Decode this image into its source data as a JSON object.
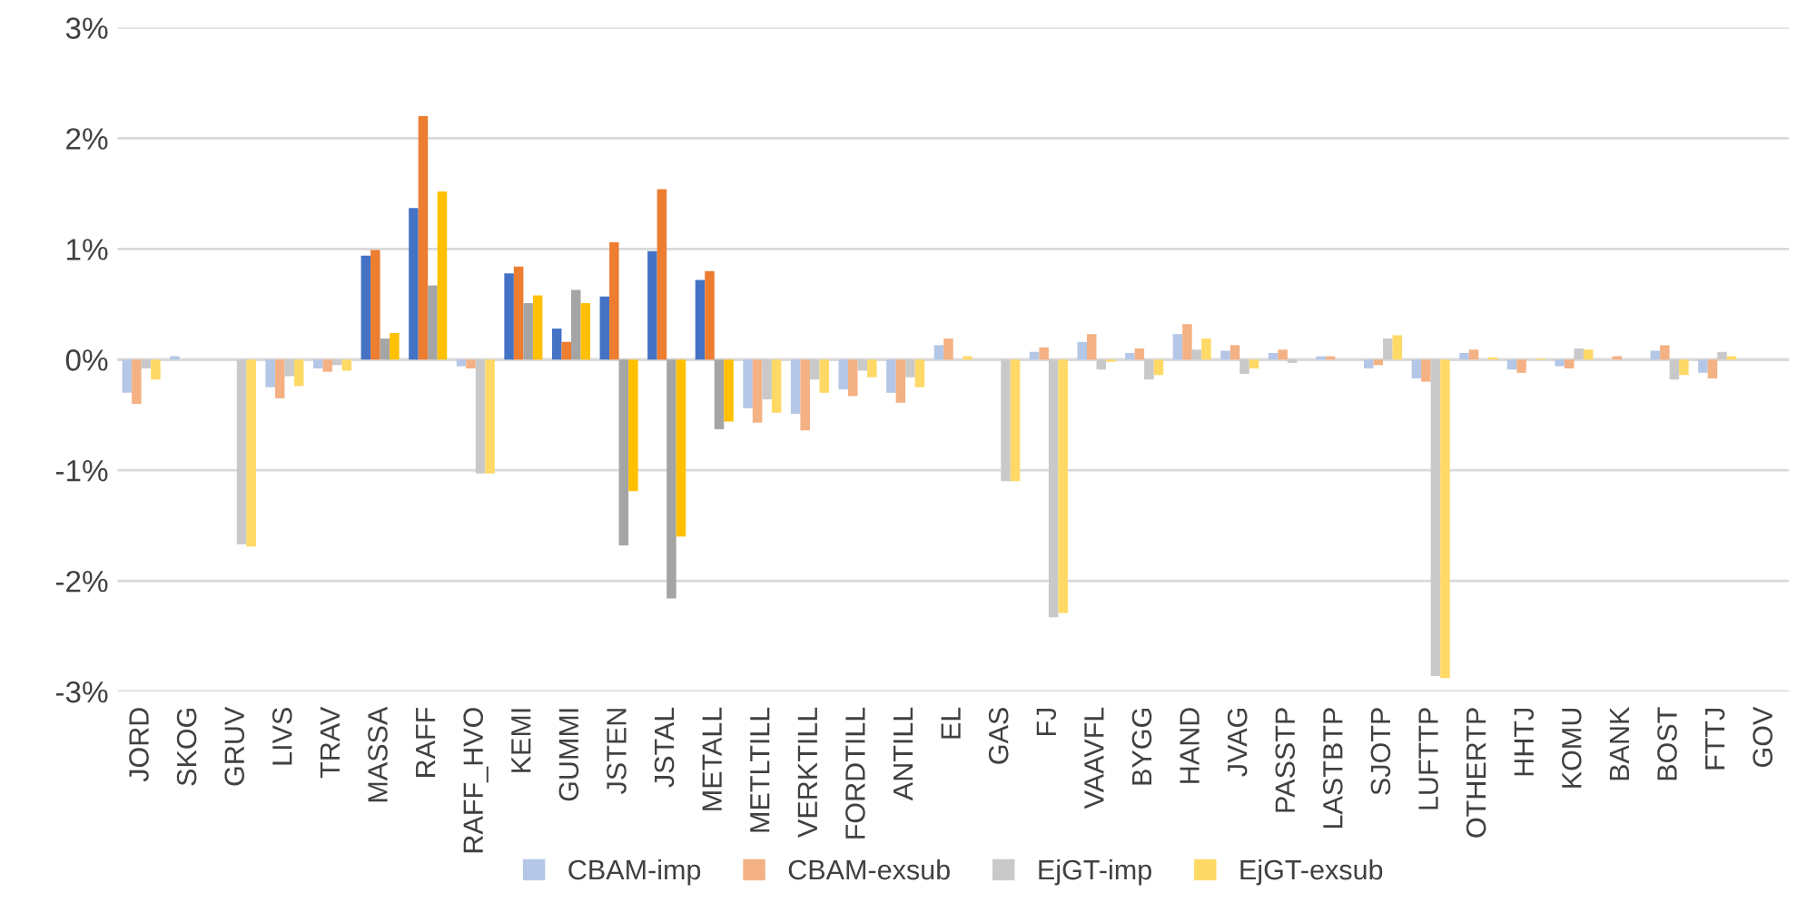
{
  "chart_data": {
    "type": "bar",
    "categories": [
      "JORD",
      "SKOG",
      "GRUV",
      "LIVS",
      "TRAV",
      "MASSA",
      "RAFF",
      "RAFF_HVO",
      "KEMI",
      "GUMMI",
      "JSTEN",
      "JSTAL",
      "METALL",
      "METLTILL",
      "VERKTILL",
      "FORDTILL",
      "ANTILL",
      "EL",
      "GAS",
      "FJ",
      "VAAVFL",
      "BYGG",
      "HAND",
      "JVAG",
      "PASSTP",
      "LASTBTP",
      "SJOTP",
      "LUFTTP",
      "OTHERTP",
      "HHTJ",
      "KOMU",
      "BANK",
      "BOST",
      "FTTJ",
      "GOV"
    ],
    "series": [
      {
        "name": "CBAM-imp",
        "color": "#b4c7e7",
        "colors": [
          "#b4c7e7",
          "#b4c7e7",
          "#b4c7e7",
          "#b4c7e7",
          "#b4c7e7",
          "#4472c4",
          "#4472c4",
          "#b4c7e7",
          "#4472c4",
          "#4472c4",
          "#4472c4",
          "#4472c4",
          "#4472c4",
          "#b4c7e7",
          "#b4c7e7",
          "#b4c7e7",
          "#b4c7e7",
          "#b4c7e7",
          "#b4c7e7",
          "#b4c7e7",
          "#b4c7e7",
          "#b4c7e7",
          "#b4c7e7",
          "#b4c7e7",
          "#b4c7e7",
          "#b4c7e7",
          "#b4c7e7",
          "#b4c7e7",
          "#b4c7e7",
          "#b4c7e7",
          "#b4c7e7",
          "#b4c7e7",
          "#b4c7e7",
          "#b4c7e7",
          "#b4c7e7"
        ],
        "values": [
          -0.3,
          0.03,
          0,
          -0.25,
          -0.08,
          0.94,
          1.37,
          -0.06,
          0.78,
          0.28,
          0.57,
          0.98,
          0.72,
          -0.44,
          -0.49,
          -0.27,
          -0.3,
          0.13,
          0,
          0.07,
          0.16,
          0.06,
          0.23,
          0.08,
          0.06,
          0.03,
          -0.08,
          -0.17,
          0.06,
          -0.09,
          -0.06,
          null,
          0.08,
          -0.12,
          0
        ]
      },
      {
        "name": "CBAM-exsub",
        "color": "#f4b183",
        "colors": [
          "#f4b183",
          "#f4b183",
          "#f4b183",
          "#f4b183",
          "#f4b183",
          "#ed7d31",
          "#ed7d31",
          "#f4b183",
          "#ed7d31",
          "#ed7d31",
          "#ed7d31",
          "#ed7d31",
          "#ed7d31",
          "#f4b183",
          "#f4b183",
          "#f4b183",
          "#f4b183",
          "#f4b183",
          "#f4b183",
          "#f4b183",
          "#f4b183",
          "#f4b183",
          "#f4b183",
          "#f4b183",
          "#f4b183",
          "#f4b183",
          "#f4b183",
          "#f4b183",
          "#f4b183",
          "#f4b183",
          "#f4b183",
          "#f4b183",
          "#f4b183",
          "#f4b183",
          "#f4b183"
        ],
        "values": [
          -0.4,
          0,
          0,
          -0.35,
          -0.11,
          0.99,
          2.2,
          -0.08,
          0.84,
          0.16,
          1.06,
          1.54,
          0.8,
          -0.57,
          -0.64,
          -0.33,
          -0.39,
          0.19,
          0,
          0.11,
          0.23,
          0.1,
          0.32,
          0.13,
          0.09,
          0.03,
          -0.05,
          -0.2,
          0.09,
          -0.12,
          -0.08,
          0.03,
          0.13,
          -0.17,
          0
        ]
      },
      {
        "name": "EjGT-imp",
        "color": "#c9c9c9",
        "colors": [
          "#c9c9c9",
          "#c9c9c9",
          "#c9c9c9",
          "#c9c9c9",
          "#c9c9c9",
          "#a5a5a5",
          "#a5a5a5",
          "#c9c9c9",
          "#a5a5a5",
          "#a5a5a5",
          "#a5a5a5",
          "#a5a5a5",
          "#a5a5a5",
          "#c9c9c9",
          "#c9c9c9",
          "#c9c9c9",
          "#c9c9c9",
          "#c9c9c9",
          "#c9c9c9",
          "#c9c9c9",
          "#c9c9c9",
          "#c9c9c9",
          "#c9c9c9",
          "#c9c9c9",
          "#c9c9c9",
          "#c9c9c9",
          "#c9c9c9",
          "#c9c9c9",
          "#c9c9c9",
          "#c9c9c9",
          "#c9c9c9",
          "#c9c9c9",
          "#c9c9c9",
          "#c9c9c9",
          "#c9c9c9"
        ],
        "values": [
          -0.08,
          0,
          -1.67,
          -0.15,
          -0.05,
          0.19,
          0.67,
          -1.03,
          0.51,
          0.63,
          -1.68,
          -2.16,
          -0.63,
          -0.36,
          -0.18,
          -0.1,
          -0.16,
          0,
          -1.1,
          -2.33,
          -0.09,
          -0.18,
          0.09,
          -0.13,
          -0.03,
          0,
          0.19,
          -2.86,
          0,
          null,
          0.1,
          null,
          -0.18,
          0.07,
          0
        ]
      },
      {
        "name": "EjGT-exsub",
        "color": "#ffd966",
        "colors": [
          "#ffd966",
          "#ffd966",
          "#ffd966",
          "#ffd966",
          "#ffd966",
          "#ffc000",
          "#ffc000",
          "#ffd966",
          "#ffc000",
          "#ffc000",
          "#ffc000",
          "#ffc000",
          "#ffc000",
          "#ffd966",
          "#ffd966",
          "#ffd966",
          "#ffd966",
          "#ffd966",
          "#ffd966",
          "#ffd966",
          "#ffd966",
          "#ffd966",
          "#ffd966",
          "#ffd966",
          "#ffd966",
          "#ffd966",
          "#ffd966",
          "#ffd966",
          "#ffd966",
          "#ffd966",
          "#ffd966",
          "#ffd966",
          "#ffd966",
          "#ffd966",
          "#ffd966"
        ],
        "values": [
          -0.18,
          0,
          -1.69,
          -0.24,
          -0.1,
          0.24,
          1.52,
          -1.03,
          0.58,
          0.51,
          -1.19,
          -1.6,
          -0.56,
          -0.48,
          -0.3,
          -0.16,
          -0.25,
          0.03,
          -1.1,
          -2.29,
          -0.02,
          -0.14,
          0.19,
          -0.08,
          0,
          0,
          0.22,
          -2.88,
          0.02,
          0.01,
          0.09,
          0,
          -0.14,
          0.03,
          0
        ]
      }
    ],
    "ylim": [
      -3,
      3
    ],
    "yticks": [
      {
        "value": -3,
        "label": "-3%"
      },
      {
        "value": -2,
        "label": "-2%"
      },
      {
        "value": -1,
        "label": "-1%"
      },
      {
        "value": 0,
        "label": "0%"
      },
      {
        "value": 1,
        "label": "1%"
      },
      {
        "value": 2,
        "label": "2%"
      },
      {
        "value": 3,
        "label": "3%"
      }
    ],
    "grid": "y",
    "legend": "bottom"
  }
}
